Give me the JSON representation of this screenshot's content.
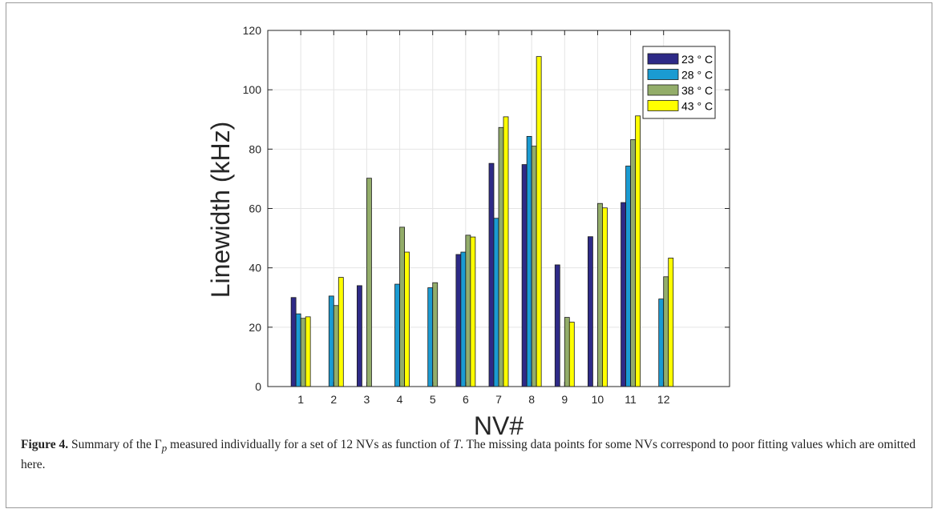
{
  "chart_data": {
    "type": "bar",
    "categories": [
      "1",
      "2",
      "3",
      "4",
      "5",
      "6",
      "7",
      "8",
      "9",
      "10",
      "11",
      "12"
    ],
    "series": [
      {
        "name": "23 ° C",
        "color": "#2e2a87",
        "values": [
          30,
          null,
          34,
          null,
          null,
          44.5,
          75.2,
          74.8,
          41,
          50.5,
          62,
          null
        ]
      },
      {
        "name": "28 ° C",
        "color": "#1a9bd2",
        "values": [
          24.5,
          30.5,
          null,
          34.5,
          33.3,
          45.3,
          56.7,
          84.3,
          null,
          null,
          74.3,
          29.5
        ]
      },
      {
        "name": "38 ° C",
        "color": "#93ad6a",
        "values": [
          23,
          27.3,
          70.2,
          53.7,
          35,
          51,
          87.3,
          81,
          23.3,
          61.7,
          83.2,
          37
        ]
      },
      {
        "name": "43 ° C",
        "color": "#ffff00",
        "values": [
          23.5,
          36.8,
          null,
          45.3,
          null,
          50.4,
          90.9,
          111.2,
          21.7,
          60.2,
          91.2,
          43.3
        ]
      }
    ],
    "xlabel": "NV#",
    "ylabel": "Linewidth (kHz)",
    "ylim": [
      0,
      120
    ],
    "yticks": [
      0,
      20,
      40,
      60,
      80,
      100,
      120
    ],
    "xlim": [
      0,
      14
    ],
    "grid": true,
    "legend_position": "top-right"
  },
  "caption": {
    "label": "Figure 4.",
    "text_before": " Summary of the Γ",
    "subscript": "p",
    "text_middle": " measured individually for a set of 12 NVs as function of ",
    "variable": "T",
    "text_after": ". The missing data points for some NVs correspond to poor fitting values which are omitted here."
  }
}
